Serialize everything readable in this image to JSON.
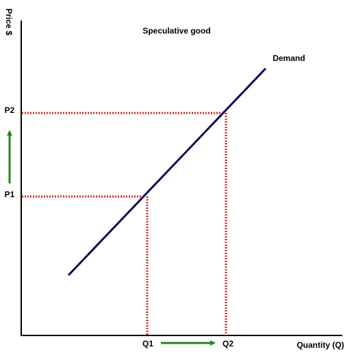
{
  "title": "Speculative good",
  "axes": {
    "y_label": "Price $",
    "x_label": "Quantity (Q)"
  },
  "curve": {
    "label": "Demand"
  },
  "prices": {
    "p1": "P1",
    "p2": "P2"
  },
  "quantities": {
    "q1": "Q1",
    "q2": "Q2"
  }
}
